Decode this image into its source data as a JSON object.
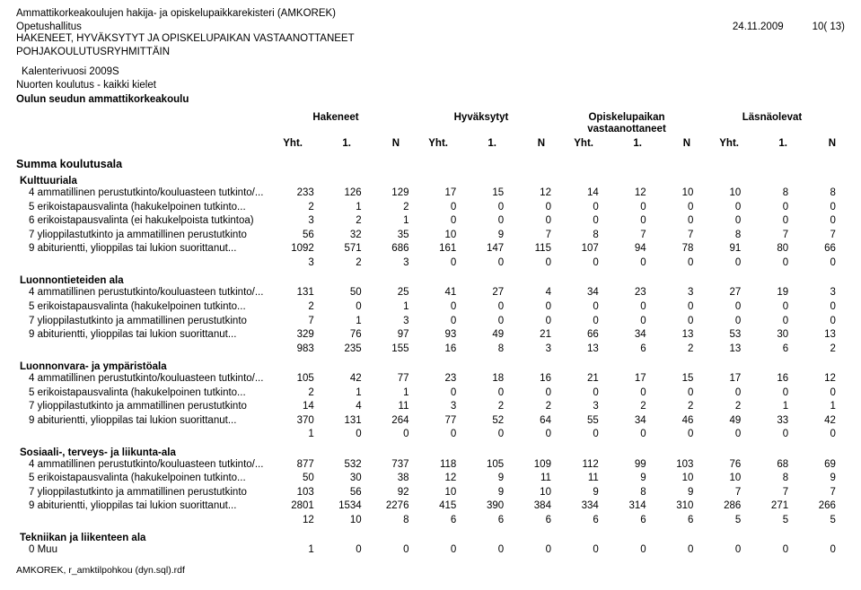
{
  "header": {
    "line1": "Ammattikorkeakoulujen hakija- ja opiskelupaikkarekisteri (AMKOREK)",
    "org": "Opetushallitus",
    "date": "24.11.2009",
    "page": "10( 13)",
    "title1": "HAKENEET, HYVÄKSYTYT JA OPISKELUPAIKAN VASTAANOTTANEET",
    "title2": "POHJAKOULUTUSRYHMITTÄIN",
    "cal": "Kalenterivuosi 2009S",
    "scope": "Nuorten koulutus - kaikki kielet",
    "school": "Oulun seudun ammattikorkeakoulu"
  },
  "colgroups": [
    "Hakeneet",
    "Hyväksytyt",
    "Opiskelupaikan vastaanottaneet",
    "Läsnäolevat"
  ],
  "subcols": [
    "Yht.",
    "1.",
    "N"
  ],
  "summa": "Summa koulutusala",
  "alat": [
    {
      "name": "Kulttuuriala",
      "rows": [
        {
          "lbl": "4 ammatillinen perustutkinto/kouluasteen tutkinto/...",
          "v": [
            233,
            126,
            129,
            17,
            15,
            12,
            14,
            12,
            10,
            10,
            8,
            8
          ]
        },
        {
          "lbl": "5 erikoistapausvalinta (hakukelpoinen tutkinto...",
          "v": [
            2,
            1,
            2,
            0,
            0,
            0,
            0,
            0,
            0,
            0,
            0,
            0
          ]
        },
        {
          "lbl": "6 erikoistapausvalinta (ei hakukelpoista tutkintoa)",
          "v": [
            3,
            2,
            1,
            0,
            0,
            0,
            0,
            0,
            0,
            0,
            0,
            0
          ]
        },
        {
          "lbl": "7 ylioppilastutkinto ja ammatillinen perustutkinto",
          "v": [
            56,
            32,
            35,
            10,
            9,
            7,
            8,
            7,
            7,
            8,
            7,
            7
          ]
        },
        {
          "lbl": "9 abiturientti, ylioppilas tai lukion suorittanut...",
          "v": [
            1092,
            571,
            686,
            161,
            147,
            115,
            107,
            94,
            78,
            91,
            80,
            66
          ]
        }
      ],
      "total": [
        3,
        2,
        3,
        0,
        0,
        0,
        0,
        0,
        0,
        0,
        0,
        0
      ]
    },
    {
      "name": "Luonnontieteiden ala",
      "rows": [
        {
          "lbl": "4 ammatillinen perustutkinto/kouluasteen tutkinto/...",
          "v": [
            131,
            50,
            25,
            41,
            27,
            4,
            34,
            23,
            3,
            27,
            19,
            3
          ]
        },
        {
          "lbl": "5 erikoistapausvalinta (hakukelpoinen tutkinto...",
          "v": [
            2,
            0,
            1,
            0,
            0,
            0,
            0,
            0,
            0,
            0,
            0,
            0
          ]
        },
        {
          "lbl": "7 ylioppilastutkinto ja ammatillinen perustutkinto",
          "v": [
            7,
            1,
            3,
            0,
            0,
            0,
            0,
            0,
            0,
            0,
            0,
            0
          ]
        },
        {
          "lbl": "9 abiturientti, ylioppilas tai lukion suorittanut...",
          "v": [
            329,
            76,
            97,
            93,
            49,
            21,
            66,
            34,
            13,
            53,
            30,
            13
          ]
        }
      ],
      "total": [
        983,
        235,
        155,
        16,
        8,
        3,
        13,
        6,
        2,
        13,
        6,
        2
      ]
    },
    {
      "name": "Luonnonvara- ja ympäristöala",
      "rows": [
        {
          "lbl": "4 ammatillinen perustutkinto/kouluasteen tutkinto/...",
          "v": [
            105,
            42,
            77,
            23,
            18,
            16,
            21,
            17,
            15,
            17,
            16,
            12
          ]
        },
        {
          "lbl": "5 erikoistapausvalinta (hakukelpoinen tutkinto...",
          "v": [
            2,
            1,
            1,
            0,
            0,
            0,
            0,
            0,
            0,
            0,
            0,
            0
          ]
        },
        {
          "lbl": "7 ylioppilastutkinto ja ammatillinen perustutkinto",
          "v": [
            14,
            4,
            11,
            3,
            2,
            2,
            3,
            2,
            2,
            2,
            1,
            1
          ]
        },
        {
          "lbl": "9 abiturientti, ylioppilas tai lukion suorittanut...",
          "v": [
            370,
            131,
            264,
            77,
            52,
            64,
            55,
            34,
            46,
            49,
            33,
            42
          ]
        }
      ],
      "total": [
        1,
        0,
        0,
        0,
        0,
        0,
        0,
        0,
        0,
        0,
        0,
        0
      ]
    },
    {
      "name": "Sosiaali-, terveys- ja liikunta-ala",
      "rows": [
        {
          "lbl": "4 ammatillinen perustutkinto/kouluasteen tutkinto/...",
          "v": [
            877,
            532,
            737,
            118,
            105,
            109,
            112,
            99,
            103,
            76,
            68,
            69
          ]
        },
        {
          "lbl": "5 erikoistapausvalinta (hakukelpoinen tutkinto...",
          "v": [
            50,
            30,
            38,
            12,
            9,
            11,
            11,
            9,
            10,
            10,
            8,
            9
          ]
        },
        {
          "lbl": "7 ylioppilastutkinto ja ammatillinen perustutkinto",
          "v": [
            103,
            56,
            92,
            10,
            9,
            10,
            9,
            8,
            9,
            7,
            7,
            7
          ]
        },
        {
          "lbl": "9 abiturientti, ylioppilas tai lukion suorittanut...",
          "v": [
            2801,
            1534,
            2276,
            415,
            390,
            384,
            334,
            314,
            310,
            286,
            271,
            266
          ]
        }
      ],
      "total": [
        12,
        10,
        8,
        6,
        6,
        6,
        6,
        6,
        6,
        5,
        5,
        5
      ]
    },
    {
      "name": "Tekniikan ja liikenteen ala",
      "rows": [
        {
          "lbl": "0 Muu",
          "v": [
            1,
            0,
            0,
            0,
            0,
            0,
            0,
            0,
            0,
            0,
            0,
            0
          ]
        }
      ]
    }
  ],
  "footer": "AMKOREK, r_amktilpohkou (dyn.sql).rdf"
}
